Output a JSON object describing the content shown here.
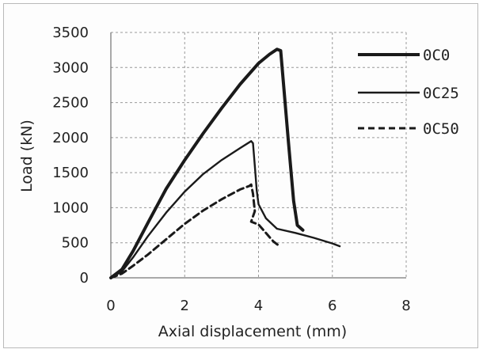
{
  "chart_data": {
    "type": "line",
    "title": "",
    "xlabel": "Axial displacement (mm)",
    "ylabel": "Load (kN)",
    "xlim": [
      0,
      8
    ],
    "ylim": [
      0,
      3500
    ],
    "x_ticks": [
      0,
      2,
      4,
      6,
      8
    ],
    "y_ticks": [
      0,
      500,
      1000,
      1500,
      2000,
      2500,
      3000,
      3500
    ],
    "x_tick_labels": [
      "0",
      "2",
      "4",
      "6",
      "8"
    ],
    "y_tick_labels": [
      "0",
      "500",
      "1000",
      "1500",
      "2000",
      "2500",
      "3000",
      "3500"
    ],
    "grid": true,
    "legend_position": "right",
    "series": [
      {
        "name": "0C0",
        "style": "solid-thick",
        "color": "#1a1a1a",
        "points": [
          [
            0,
            0
          ],
          [
            0.3,
            120
          ],
          [
            0.6,
            380
          ],
          [
            1.0,
            780
          ],
          [
            1.5,
            1270
          ],
          [
            2.0,
            1680
          ],
          [
            2.5,
            2060
          ],
          [
            3.0,
            2420
          ],
          [
            3.5,
            2760
          ],
          [
            4.0,
            3060
          ],
          [
            4.3,
            3190
          ],
          [
            4.5,
            3260
          ],
          [
            4.6,
            3240
          ],
          [
            4.8,
            2000
          ],
          [
            4.95,
            1100
          ],
          [
            5.05,
            750
          ],
          [
            5.2,
            680
          ]
        ]
      },
      {
        "name": "0C25",
        "style": "solid",
        "color": "#1a1a1a",
        "points": [
          [
            0,
            0
          ],
          [
            0.3,
            90
          ],
          [
            0.6,
            290
          ],
          [
            1.0,
            590
          ],
          [
            1.5,
            930
          ],
          [
            2.0,
            1230
          ],
          [
            2.5,
            1480
          ],
          [
            3.0,
            1680
          ],
          [
            3.5,
            1850
          ],
          [
            3.8,
            1950
          ],
          [
            3.85,
            1920
          ],
          [
            3.9,
            1600
          ],
          [
            3.95,
            1250
          ],
          [
            4.0,
            1050
          ],
          [
            4.2,
            850
          ],
          [
            4.5,
            700
          ],
          [
            5.0,
            640
          ],
          [
            5.5,
            570
          ],
          [
            6.0,
            490
          ],
          [
            6.2,
            450
          ]
        ]
      },
      {
        "name": "0C50",
        "style": "dashed",
        "color": "#1a1a1a",
        "points": [
          [
            0,
            0
          ],
          [
            0.3,
            60
          ],
          [
            0.6,
            170
          ],
          [
            1.0,
            330
          ],
          [
            1.5,
            550
          ],
          [
            2.0,
            770
          ],
          [
            2.5,
            960
          ],
          [
            3.0,
            1120
          ],
          [
            3.5,
            1260
          ],
          [
            3.75,
            1310
          ],
          [
            3.8,
            1330
          ],
          [
            3.85,
            1200
          ],
          [
            3.9,
            950
          ],
          [
            3.8,
            800
          ],
          [
            4.0,
            760
          ],
          [
            4.2,
            640
          ],
          [
            4.4,
            520
          ],
          [
            4.55,
            460
          ]
        ]
      }
    ]
  }
}
